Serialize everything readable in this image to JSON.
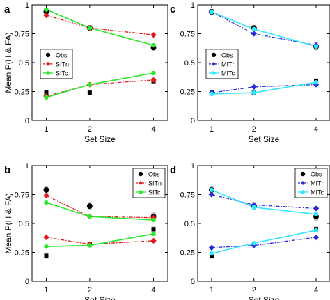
{
  "chart_data": [
    {
      "type": "line",
      "panel_label": "a",
      "xlabel": "Set Size",
      "ylabel": "Mean P(H & FA)",
      "x": [
        1,
        2,
        4
      ],
      "xticks": [
        "1",
        "2",
        "4"
      ],
      "ylim": [
        0,
        1
      ],
      "yticks": [
        "0",
        "0.25",
        "0.5",
        "0.75",
        "1"
      ],
      "legend_position": "center-left",
      "legend": [
        {
          "name": "Obs",
          "style": "obs"
        },
        {
          "name": "SITn",
          "style": "n"
        },
        {
          "name": "SITc",
          "style": "c"
        }
      ],
      "observed": [
        {
          "values": [
            0.94,
            0.8,
            0.63
          ],
          "errors": [
            0.02,
            0.02,
            0.02
          ],
          "marker": "circle"
        },
        {
          "values": [
            0.24,
            0.24,
            0.34
          ],
          "errors": [
            0.02,
            0.02,
            0.02
          ],
          "marker": "square"
        }
      ],
      "series": [
        {
          "name": "SITn",
          "style": "n",
          "values": [
            0.91,
            0.8,
            0.74
          ]
        },
        {
          "name": "SITn",
          "style": "n",
          "values": [
            0.21,
            0.31,
            0.35
          ]
        },
        {
          "name": "SITc",
          "style": "c",
          "values": [
            0.96,
            0.8,
            0.65
          ]
        },
        {
          "name": "SITc",
          "style": "c",
          "values": [
            0.2,
            0.31,
            0.41
          ]
        }
      ]
    },
    {
      "type": "line",
      "panel_label": "c",
      "xlabel": "Set Size",
      "ylabel": "",
      "x": [
        1,
        2,
        4
      ],
      "xticks": [
        "1",
        "2",
        "4"
      ],
      "ylim": [
        0,
        1
      ],
      "yticks": [
        "0",
        "0.25",
        "0.5",
        "0.75",
        "1"
      ],
      "legend_position": "center-left",
      "legend": [
        {
          "name": "Obs",
          "style": "obs"
        },
        {
          "name": "MITn",
          "style": "n"
        },
        {
          "name": "MITc",
          "style": "c"
        }
      ],
      "observed": [
        {
          "values": [
            0.94,
            0.8,
            0.64
          ],
          "errors": [
            0.02,
            0.02,
            0.03
          ],
          "marker": "circle"
        },
        {
          "values": [
            0.24,
            0.24,
            0.34
          ],
          "errors": [
            0.02,
            0.02,
            0.02
          ],
          "marker": "square"
        }
      ],
      "series": [
        {
          "name": "MITn",
          "style": "n",
          "values": [
            0.94,
            0.75,
            0.65
          ]
        },
        {
          "name": "MITn",
          "style": "n",
          "values": [
            0.24,
            0.29,
            0.31
          ]
        },
        {
          "name": "MITc",
          "style": "c",
          "values": [
            0.94,
            0.79,
            0.64
          ]
        },
        {
          "name": "MITc",
          "style": "c",
          "values": [
            0.23,
            0.24,
            0.33
          ]
        }
      ]
    },
    {
      "type": "line",
      "panel_label": "b",
      "xlabel": "Set Size",
      "ylabel": "Mean P(H & FA)",
      "x": [
        1,
        2,
        4
      ],
      "xticks": [
        "1",
        "2",
        "4"
      ],
      "ylim": [
        0,
        1
      ],
      "yticks": [
        "0",
        "0.25",
        "0.5",
        "0.75",
        "1"
      ],
      "legend_position": "top-right",
      "legend": [
        {
          "name": "Obs",
          "style": "obs"
        },
        {
          "name": "SITn",
          "style": "n"
        },
        {
          "name": "SITc",
          "style": "c"
        }
      ],
      "observed": [
        {
          "values": [
            0.79,
            0.65,
            0.56
          ],
          "errors": [
            0.03,
            0.03,
            0.03
          ],
          "marker": "circle"
        },
        {
          "values": [
            0.22,
            0.32,
            0.45
          ],
          "errors": [
            0.02,
            0.02,
            0.02
          ],
          "marker": "square"
        }
      ],
      "series": [
        {
          "name": "SITn",
          "style": "n",
          "values": [
            0.74,
            0.56,
            0.55
          ]
        },
        {
          "name": "SITn",
          "style": "n",
          "values": [
            0.38,
            0.32,
            0.35
          ]
        },
        {
          "name": "SITc",
          "style": "c",
          "values": [
            0.68,
            0.56,
            0.53
          ]
        },
        {
          "name": "SITc",
          "style": "c",
          "values": [
            0.3,
            0.31,
            0.41
          ]
        }
      ]
    },
    {
      "type": "line",
      "panel_label": "d",
      "xlabel": "Set Size",
      "ylabel": "",
      "x": [
        1,
        2,
        4
      ],
      "xticks": [
        "1",
        "2",
        "4"
      ],
      "ylim": [
        0,
        1
      ],
      "yticks": [
        "0",
        "0.25",
        "0.5",
        "0.75",
        "1"
      ],
      "legend_position": "top-right",
      "legend": [
        {
          "name": "Obs",
          "style": "obs"
        },
        {
          "name": "MITn",
          "style": "n"
        },
        {
          "name": "MITc",
          "style": "c"
        }
      ],
      "observed": [
        {
          "values": [
            0.79,
            0.65,
            0.56
          ],
          "errors": [
            0.03,
            0.03,
            0.03
          ],
          "marker": "circle"
        },
        {
          "values": [
            0.22,
            0.32,
            0.45
          ],
          "errors": [
            0.02,
            0.02,
            0.02
          ],
          "marker": "square"
        }
      ],
      "series": [
        {
          "name": "MITn",
          "style": "n",
          "values": [
            0.75,
            0.66,
            0.63
          ]
        },
        {
          "name": "MITn",
          "style": "n",
          "values": [
            0.29,
            0.31,
            0.38
          ]
        },
        {
          "name": "MITc",
          "style": "c",
          "values": [
            0.79,
            0.64,
            0.58
          ]
        },
        {
          "name": "MITc",
          "style": "c",
          "values": [
            0.24,
            0.33,
            0.44
          ]
        }
      ]
    }
  ],
  "colors": {
    "SITn": "#e31a1c",
    "SITc": "#2ee82e",
    "MITn": "#2b2bd6",
    "MITc": "#33e6ff",
    "obs": "#000000",
    "axis": "#000000",
    "errorbar": "#999999",
    "background": "#ffffff"
  }
}
